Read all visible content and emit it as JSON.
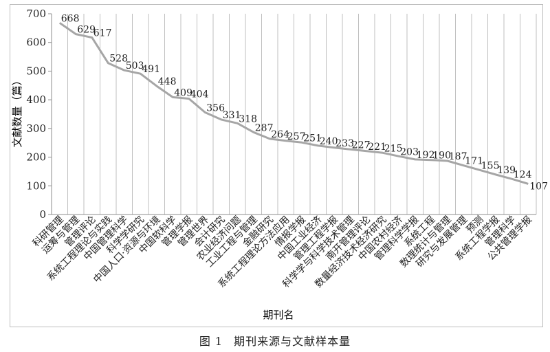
{
  "caption": {
    "figure_number": "图 1",
    "text": "期刊来源与文献样本量"
  },
  "chart_data": {
    "type": "line",
    "xlabel": "期刊名",
    "ylabel": "文献数量（篇）",
    "ylim": [
      0,
      700
    ],
    "yticks": [
      0,
      100,
      200,
      300,
      400,
      500,
      600,
      700
    ],
    "grid": "vertical",
    "line_color": "#a6a6a6",
    "categories": [
      "科研管理",
      "运筹与管理",
      "管理评论",
      "系统工程理论与实践",
      "中国管理科学",
      "科学学研究",
      "中国人口·资源与环境",
      "中国软科学",
      "管理学报",
      "管理世界",
      "会计研究",
      "农业经济问题",
      "工业工程与管理",
      "金融研究",
      "系统工程理论方法应用",
      "情报学报",
      "中国工业经济",
      "管理工程学报",
      "科学学与科学技术管理",
      "南开管理评论",
      "数量经济技术经济研究",
      "中国农村经济",
      "管理科学学报",
      "系统工程",
      "数理统计与管理",
      "研究与发展管理",
      "预测",
      "系统工程学报",
      "管理科学",
      "公共管理学报"
    ],
    "values": [
      668,
      629,
      617,
      528,
      503,
      491,
      448,
      409,
      404,
      356,
      331,
      318,
      287,
      264,
      257,
      251,
      240,
      233,
      227,
      221,
      215,
      203,
      192,
      190,
      187,
      171,
      155,
      139,
      124,
      107
    ],
    "data_labels": [
      "668",
      "629",
      "617",
      "528",
      "503",
      "491",
      "448",
      "409",
      "404",
      "356",
      "331",
      "318",
      "287",
      "264",
      "257",
      "251",
      "240",
      "233",
      "227",
      "221",
      "215",
      "203",
      "192",
      "190",
      "187",
      "171",
      "155",
      "139",
      "124",
      "107"
    ]
  }
}
